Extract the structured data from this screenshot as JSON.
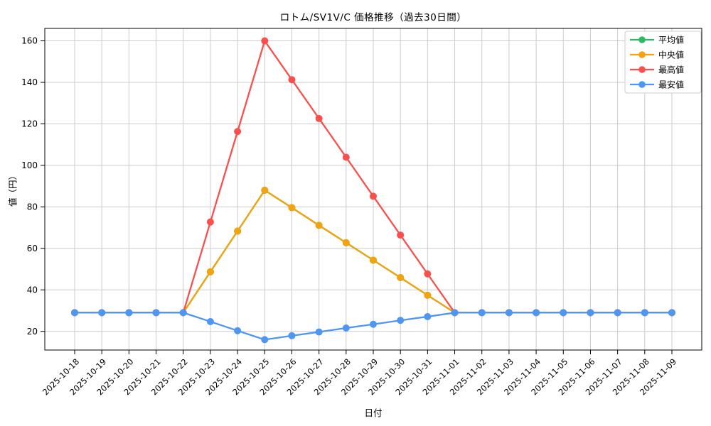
{
  "figure": {
    "title": "ロトム/SV1V/C 価格推移（過去30日間）",
    "xlabel": "日付",
    "ylabel": "値（円）"
  },
  "chart_data": {
    "type": "line",
    "title": "ロトム/SV1V/C 価格推移（過去30日間）",
    "xlabel": "日付",
    "ylabel": "値（円）",
    "x": [
      "2025-10-18",
      "2025-10-19",
      "2025-10-20",
      "2025-10-21",
      "2025-10-22",
      "2025-10-23",
      "2025-10-24",
      "2025-10-25",
      "2025-10-26",
      "2025-10-27",
      "2025-10-28",
      "2025-10-29",
      "2025-10-30",
      "2025-10-31",
      "2025-11-01",
      "2025-11-02",
      "2025-11-03",
      "2025-11-04",
      "2025-11-05",
      "2025-11-06",
      "2025-11-07",
      "2025-11-08",
      "2025-11-09"
    ],
    "yticks": [
      20,
      40,
      60,
      80,
      100,
      120,
      140,
      160
    ],
    "ylim": [
      11,
      166
    ],
    "grid": true,
    "legend_position": "upper right",
    "series": [
      {
        "name": "平均値",
        "key": "average",
        "color": "#2eb863",
        "values": [
          29,
          29,
          29,
          29,
          29,
          48.7,
          68.3,
          88,
          79.6,
          71.1,
          62.7,
          54.3,
          45.9,
          37.4,
          29,
          29,
          29,
          29,
          29,
          29,
          29,
          29,
          29
        ]
      },
      {
        "name": "中央値",
        "key": "median",
        "color": "#f2a30f",
        "values": [
          29,
          29,
          29,
          29,
          29,
          48.7,
          68.3,
          88,
          79.6,
          71.1,
          62.7,
          54.3,
          45.9,
          37.4,
          29,
          29,
          29,
          29,
          29,
          29,
          29,
          29,
          29
        ]
      },
      {
        "name": "最高値",
        "key": "max",
        "color": "#f9504e",
        "values": [
          29,
          29,
          29,
          29,
          29,
          72.7,
          116.3,
          160,
          141.3,
          122.6,
          103.9,
          85.1,
          66.4,
          47.7,
          29,
          29,
          29,
          29,
          29,
          29,
          29,
          29,
          29
        ]
      },
      {
        "name": "最安値",
        "key": "min",
        "color": "#4d96f2",
        "values": [
          29,
          29,
          29,
          29,
          29,
          24.7,
          20.3,
          16,
          17.9,
          19.7,
          21.6,
          23.4,
          25.3,
          27.1,
          29,
          29,
          29,
          29,
          29,
          29,
          29,
          29,
          29
        ]
      }
    ],
    "colors": {
      "grid": "#cccccc",
      "spine": "#000000",
      "background": "#ffffff",
      "legend_border": "#cccccc"
    }
  }
}
